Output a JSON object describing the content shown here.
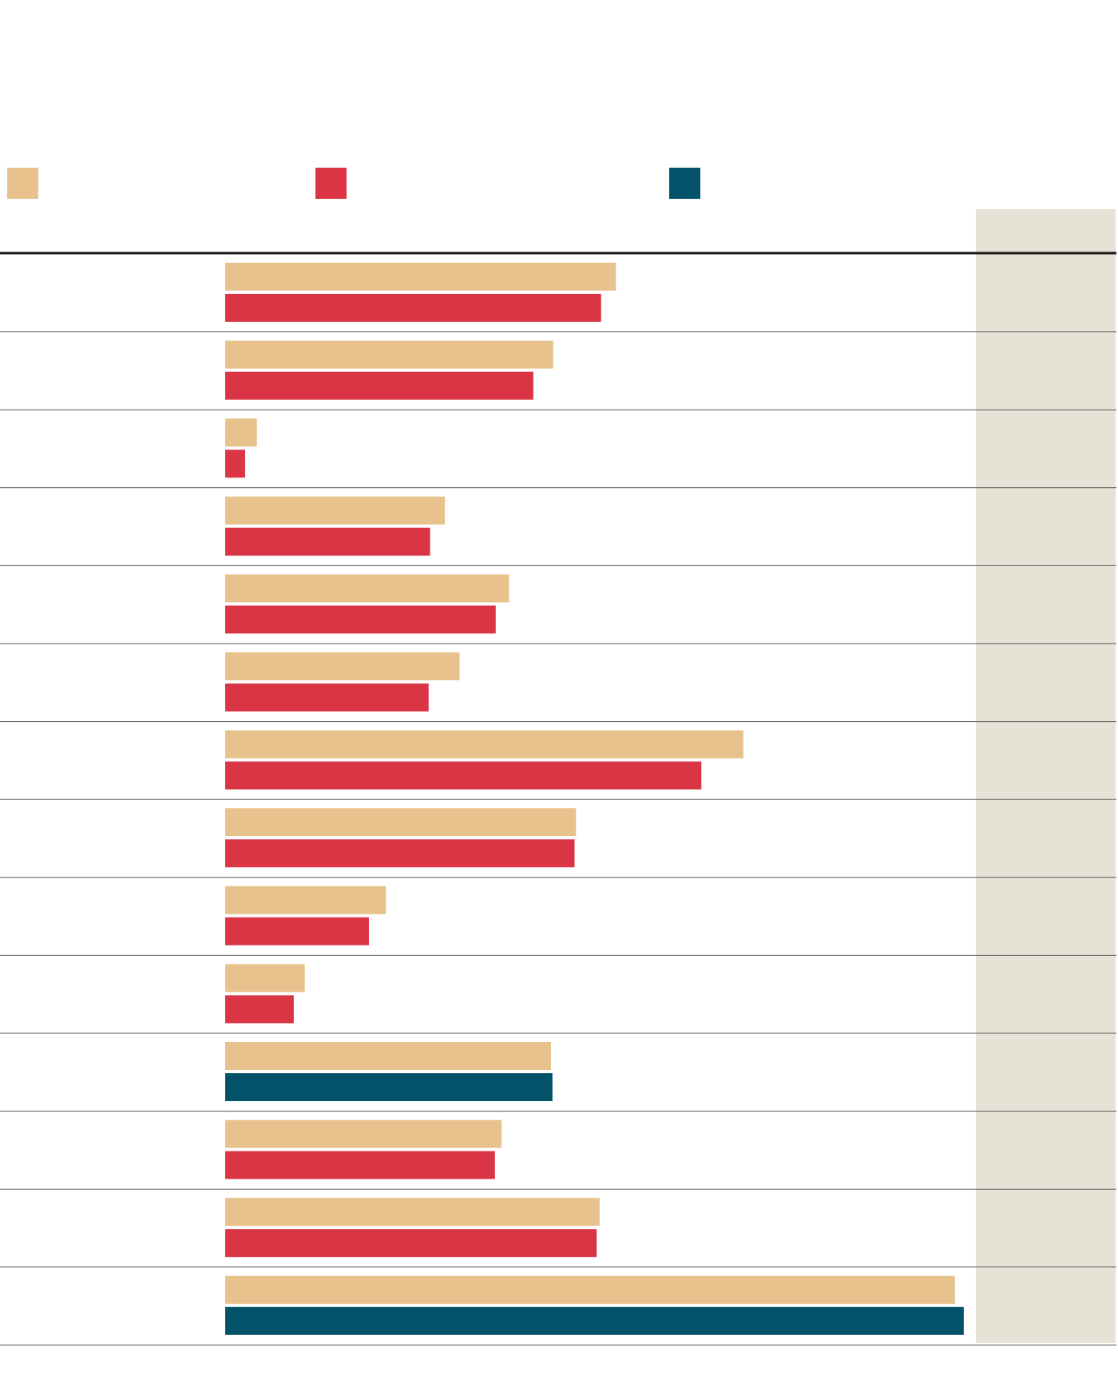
{
  "chart_data": {
    "type": "bar",
    "orientation": "horizontal",
    "grid": false,
    "legend": "top-left",
    "xlim": [
      0,
      100
    ],
    "series": [
      {
        "color": "#e8c28c"
      },
      {
        "color": "#d93545"
      },
      {
        "color": "#04526a"
      }
    ],
    "rows": [
      {
        "values": [
          53,
          51
        ],
        "second_series": 1
      },
      {
        "values": [
          44.5,
          41.8
        ],
        "second_series": 1
      },
      {
        "values": [
          4.3,
          2.7
        ],
        "second_series": 1
      },
      {
        "values": [
          29.8,
          27.8
        ],
        "second_series": 1
      },
      {
        "values": [
          38.5,
          36.7
        ],
        "second_series": 1
      },
      {
        "values": [
          31.8,
          27.6
        ],
        "second_series": 1
      },
      {
        "values": [
          70.3,
          64.6
        ],
        "second_series": 1
      },
      {
        "values": [
          47.6,
          47.4
        ],
        "second_series": 1
      },
      {
        "values": [
          21.8,
          19.5
        ],
        "second_series": 1
      },
      {
        "values": [
          10.8,
          9.3
        ],
        "second_series": 1
      },
      {
        "values": [
          44.2,
          44.4
        ],
        "second_series": 2
      },
      {
        "values": [
          37.5,
          36.6
        ],
        "second_series": 1
      },
      {
        "values": [
          50.8,
          50.4
        ],
        "second_series": 1
      },
      {
        "values": [
          99,
          100.2
        ],
        "second_series": 2
      }
    ],
    "side_panel_color": "#e6e3d6"
  }
}
